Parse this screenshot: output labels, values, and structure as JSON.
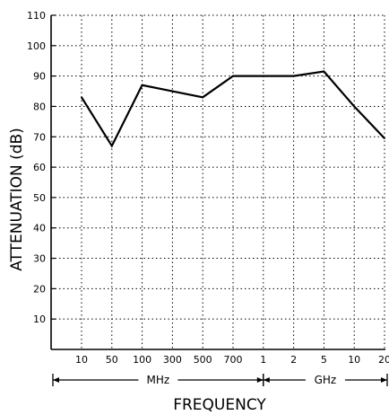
{
  "chart_data": {
    "type": "line",
    "title": "",
    "xlabel": "FREQUENCY",
    "ylabel": "ATTENUATION (dB)",
    "x_tick_labels": [
      "10",
      "50",
      "100",
      "300",
      "500",
      "700",
      "1",
      "2",
      "5",
      "10",
      "20"
    ],
    "y_tick_labels": [
      "10",
      "20",
      "30",
      "40",
      "50",
      "60",
      "70",
      "80",
      "90",
      "100",
      "110"
    ],
    "ylim": [
      0,
      110
    ],
    "grid": true,
    "x_units": [
      {
        "label": "MHz",
        "from": "10",
        "to": "1"
      },
      {
        "label": "GHz",
        "from": "1",
        "to": "20"
      }
    ],
    "series": [
      {
        "x": [
          "10",
          "50",
          "100",
          "300",
          "500",
          "700",
          "1",
          "2",
          "5",
          "10",
          "20"
        ],
        "values": [
          83,
          67,
          87,
          85,
          83,
          90,
          90,
          90,
          91.5,
          80,
          69.5
        ]
      }
    ]
  }
}
